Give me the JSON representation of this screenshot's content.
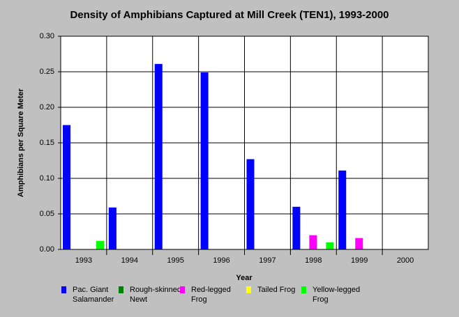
{
  "chart_data": {
    "type": "bar",
    "title": "Density of Amphibians Captured at Mill Creek (TEN1), 1993-2000",
    "x_label": "Year",
    "y_label": "Amphibians per Square Meter",
    "categories": [
      "1993",
      "1994",
      "1995",
      "1996",
      "1997",
      "1998",
      "1999",
      "2000"
    ],
    "series": [
      {
        "name": "Pac. Giant Salamander",
        "color": "#0000ff",
        "values": [
          0.175,
          0.059,
          0.261,
          0.249,
          0.127,
          0.06,
          0.111,
          0
        ]
      },
      {
        "name": "Rough-skinned Newt",
        "color": "#008000",
        "values": [
          0,
          0,
          0,
          0,
          0,
          0,
          0,
          0
        ]
      },
      {
        "name": "Red-legged Frog",
        "color": "#ff00ff",
        "values": [
          0,
          0,
          0,
          0,
          0,
          0.02,
          0.016,
          0
        ]
      },
      {
        "name": "Tailed Frog",
        "color": "#ffff00",
        "values": [
          0,
          0,
          0,
          0,
          0,
          0,
          0,
          0
        ]
      },
      {
        "name": "Yellow-legged Frog",
        "color": "#00ff00",
        "values": [
          0.012,
          0,
          0,
          0,
          0,
          0.01,
          0,
          0
        ]
      }
    ],
    "ylim": [
      0,
      0.3
    ],
    "yticks": [
      {
        "value": 0,
        "label": "0.00"
      },
      {
        "value": 0.05,
        "label": "0.05"
      },
      {
        "value": 0.1,
        "label": "0.10"
      },
      {
        "value": 0.15,
        "label": "0.15"
      },
      {
        "value": 0.2,
        "label": "0.20"
      },
      {
        "value": 0.25,
        "label": "0.25"
      },
      {
        "value": 0.3,
        "label": "0.30"
      }
    ],
    "grid": true
  }
}
